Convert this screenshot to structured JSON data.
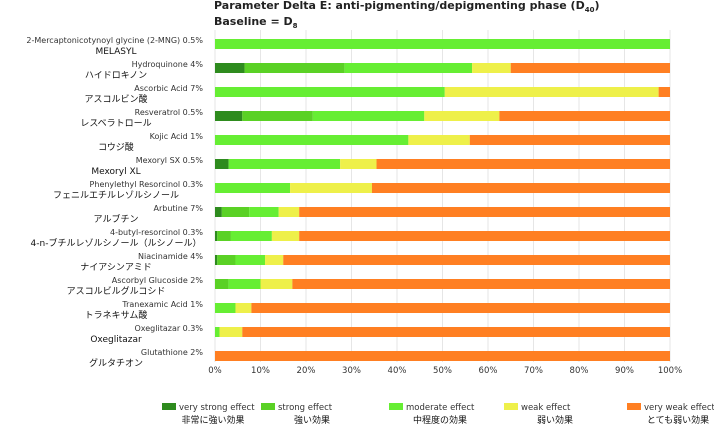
{
  "chart_data": {
    "type": "bar",
    "orientation": "horizontal",
    "stacked": true,
    "title": {
      "main": "Parameter Delta E: anti-pigmenting/depigmenting phase (D",
      "main_sub": "40",
      "main_end": ")",
      "baseline": "Baseline = D",
      "baseline_sub": "8"
    },
    "xlim": [
      0,
      100
    ],
    "x_ticks": [
      "0%",
      "10%",
      "20%",
      "30%",
      "40%",
      "50%",
      "60%",
      "70%",
      "80%",
      "90%",
      "100%"
    ],
    "grid": true,
    "legend_position": "bottom",
    "categories": [
      {
        "label_en": "2-Mercaptonicotynoyl glycine (2-MNG) 0.5%",
        "label_jp": "MELASYL"
      },
      {
        "label_en": "Hydroquinone 4%",
        "label_jp": "ハイドロキノン"
      },
      {
        "label_en": "Ascorbic Acid 7%",
        "label_jp": "アスコルビン酸"
      },
      {
        "label_en": "Resveratrol 0.5%",
        "label_jp": "レスベラトロール"
      },
      {
        "label_en": "Kojic Acid 1%",
        "label_jp": "コウジ酸"
      },
      {
        "label_en": "Mexoryl SX 0.5%",
        "label_jp": "Mexoryl XL"
      },
      {
        "label_en": "Phenylethyl Resorcinol 0.3%",
        "label_jp": "フェニルエチルレゾルシノール"
      },
      {
        "label_en": "Arbutine 7%",
        "label_jp": "アルブチン"
      },
      {
        "label_en": "4-butyl-resorcinol 0.3%",
        "label_jp": "4-n-ブチルレゾルシノール（ルシノール）"
      },
      {
        "label_en": "Niacinamide 4%",
        "label_jp": "ナイアシンアミド"
      },
      {
        "label_en": "Ascorbyl Glucoside 2%",
        "label_jp": "アスコルビルグルコシド"
      },
      {
        "label_en": "Tranexamic Acid 1%",
        "label_jp": "トラネキサム酸"
      },
      {
        "label_en": "Oxeglitazar 0.3%",
        "label_jp": "Oxeglitazar"
      },
      {
        "label_en": "Glutathione 2%",
        "label_jp": "グルタチオン"
      }
    ],
    "series": [
      {
        "name": "very strong effect",
        "name_jp": "非常に強い効果",
        "color": "#2e8b1e",
        "values": [
          0,
          6.5,
          0,
          6,
          0,
          3,
          0,
          1.5,
          0.5,
          0.5,
          0,
          0,
          0,
          0
        ]
      },
      {
        "name": "strong effect",
        "name_jp": "強い効果",
        "color": "#5ad125",
        "values": [
          0,
          22,
          0,
          15.5,
          0,
          0,
          0,
          6,
          3,
          4,
          3,
          0,
          0,
          0
        ]
      },
      {
        "name": "moderate effect",
        "name_jp": "中程度の効果",
        "color": "#66ee33",
        "values": [
          100,
          28,
          50.5,
          24.5,
          42.5,
          24.5,
          16.5,
          6.5,
          9,
          6.5,
          7,
          4.5,
          1,
          0
        ]
      },
      {
        "name": "weak effect",
        "name_jp": "弱い効果",
        "color": "#eef04a",
        "values": [
          0,
          8.5,
          47,
          16.5,
          13.5,
          8,
          18,
          4.5,
          6,
          4,
          7,
          3.5,
          5,
          0
        ]
      },
      {
        "name": "very weak effect",
        "name_jp": "とても弱い効果",
        "color": "#ff7f22",
        "values": [
          0,
          35,
          2.5,
          37.5,
          44,
          64.5,
          65.5,
          81.5,
          81.5,
          85,
          83,
          92,
          94,
          100
        ]
      }
    ]
  }
}
